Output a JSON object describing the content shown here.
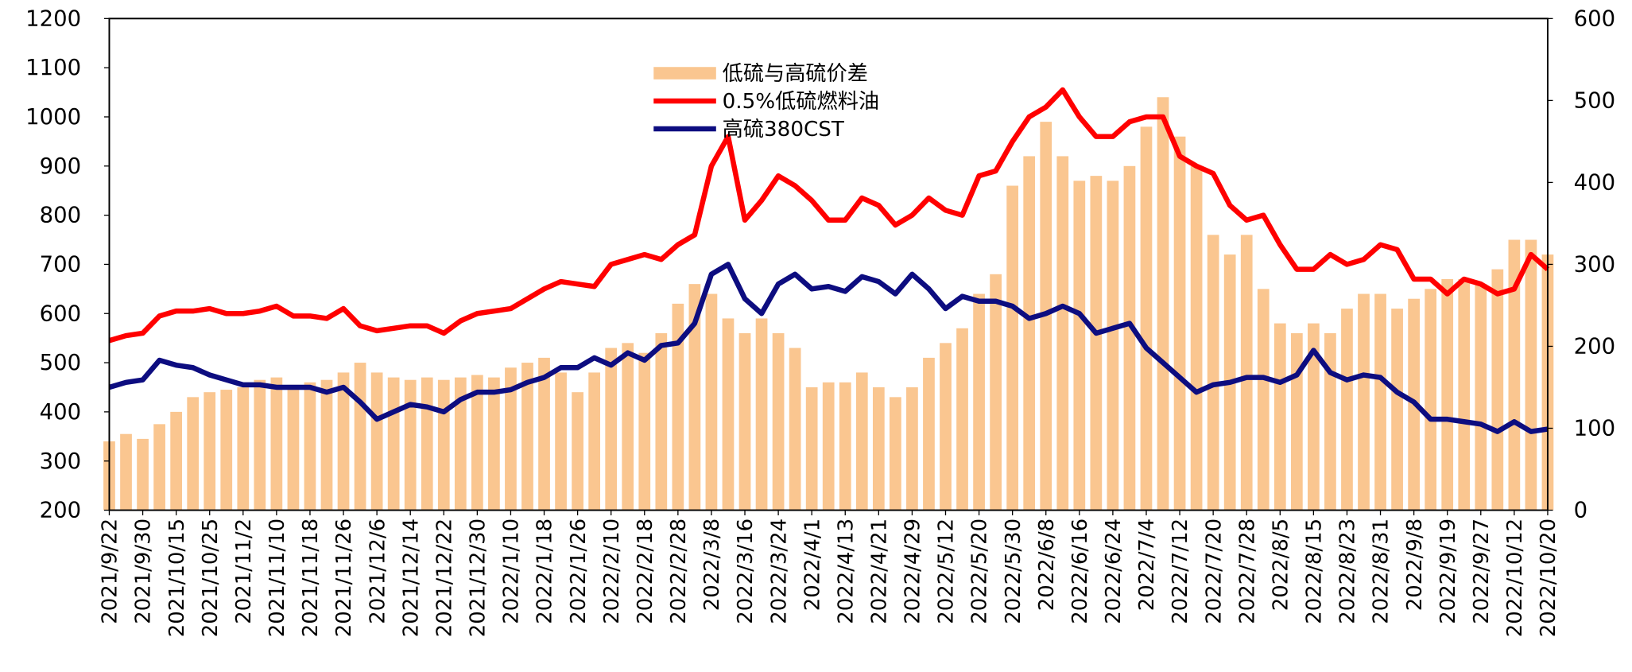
{
  "chart_data": {
    "type": "bar-line",
    "categories": [
      "2021/9/22",
      null,
      "2021/9/30",
      null,
      "2021/10/15",
      null,
      "2021/10/25",
      null,
      "2021/11/2",
      null,
      "2021/11/10",
      null,
      "2021/11/18",
      null,
      "2021/11/26",
      null,
      "2021/12/6",
      null,
      "2021/12/14",
      null,
      "2021/12/22",
      null,
      "2021/12/30",
      null,
      "2022/1/10",
      null,
      "2022/1/18",
      null,
      "2022/1/26",
      null,
      "2022/2/10",
      null,
      "2022/2/18",
      null,
      "2022/2/28",
      null,
      "2022/3/8",
      null,
      "2022/3/16",
      null,
      "2022/3/24",
      null,
      "2022/4/1",
      null,
      "2022/4/13",
      null,
      "2022/4/21",
      null,
      "2022/4/29",
      null,
      "2022/5/12",
      null,
      "2022/5/20",
      null,
      "2022/5/30",
      null,
      "2022/6/8",
      null,
      "2022/6/16",
      null,
      "2022/6/24",
      null,
      "2022/7/4",
      null,
      "2022/7/12",
      null,
      "2022/7/20",
      null,
      "2022/7/28",
      null,
      "2022/8/5",
      null,
      "2022/8/15",
      null,
      "2022/8/23",
      null,
      "2022/8/31",
      null,
      "2022/9/8",
      null,
      "2022/9/19",
      null,
      "2022/9/27",
      null,
      "2022/10/12",
      null,
      "2022/10/20"
    ],
    "series": [
      {
        "name": "低硫与高硫价差",
        "kind": "bar",
        "axis": "y2",
        "color": "#fac690",
        "values": [
          84,
          93,
          87,
          105,
          120,
          138,
          144,
          147,
          150,
          159,
          162,
          153,
          156,
          159,
          168,
          180,
          168,
          162,
          159,
          162,
          159,
          162,
          165,
          162,
          174,
          180,
          186,
          168,
          144,
          168,
          198,
          204,
          192,
          216,
          252,
          276,
          264,
          234,
          216,
          234,
          216,
          198,
          150,
          156,
          156,
          168,
          150,
          138,
          150,
          186,
          204,
          222,
          264,
          288,
          396,
          432,
          474,
          432,
          402,
          408,
          402,
          420,
          468,
          504,
          456,
          420,
          336,
          312,
          336,
          270,
          228,
          216,
          228,
          216,
          246,
          264,
          264,
          246,
          258,
          270,
          282,
          282,
          276,
          294,
          330,
          330,
          312
        ]
      },
      {
        "name": "0.5%低硫燃料油",
        "kind": "line",
        "color": "#ff0000",
        "values": [
          545,
          555,
          560,
          595,
          605,
          605,
          610,
          600,
          600,
          605,
          615,
          595,
          595,
          590,
          610,
          575,
          565,
          570,
          575,
          575,
          560,
          585,
          600,
          605,
          610,
          630,
          650,
          665,
          660,
          655,
          700,
          710,
          720,
          710,
          740,
          760,
          900,
          960,
          790,
          830,
          880,
          860,
          830,
          790,
          790,
          835,
          820,
          780,
          800,
          835,
          810,
          800,
          880,
          890,
          950,
          1000,
          1020,
          1055,
          1000,
          960,
          960,
          990,
          1000,
          1000,
          920,
          900,
          885,
          820,
          790,
          800,
          740,
          690,
          690,
          720,
          700,
          710,
          740,
          730,
          670,
          670,
          640,
          670,
          660,
          640,
          650,
          720,
          690
        ]
      },
      {
        "name": "高硫380CST",
        "kind": "line",
        "color": "#0d0d80",
        "values": [
          450,
          460,
          465,
          505,
          495,
          490,
          475,
          465,
          455,
          455,
          450,
          450,
          450,
          440,
          450,
          420,
          385,
          400,
          415,
          410,
          400,
          425,
          440,
          440,
          445,
          460,
          470,
          490,
          490,
          510,
          495,
          520,
          505,
          535,
          540,
          580,
          680,
          700,
          630,
          600,
          660,
          680,
          650,
          655,
          645,
          675,
          665,
          640,
          680,
          650,
          610,
          635,
          625,
          625,
          615,
          590,
          600,
          615,
          600,
          560,
          570,
          580,
          530,
          500,
          470,
          440,
          455,
          460,
          470,
          470,
          460,
          475,
          525,
          480,
          465,
          475,
          470,
          440,
          420,
          385,
          385,
          380,
          375,
          360,
          380,
          360,
          365
        ]
      }
    ],
    "ylim": [
      200,
      1200
    ],
    "yticks": [
      200,
      300,
      400,
      500,
      600,
      700,
      800,
      900,
      1000,
      1100,
      1200
    ],
    "y2lim": [
      0,
      600
    ],
    "y2ticks": [
      0,
      100,
      200,
      300,
      400,
      500,
      600
    ],
    "legend": "top-center"
  }
}
